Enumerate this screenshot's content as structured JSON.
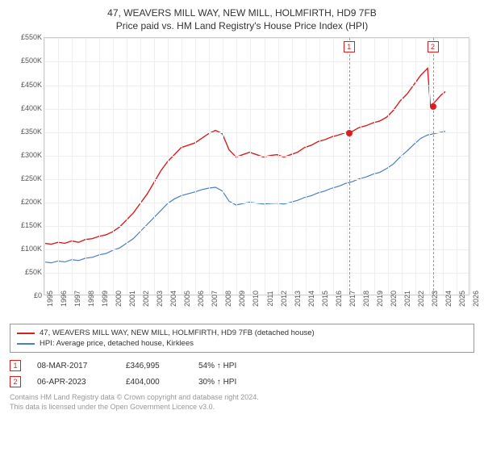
{
  "title_line1": "47, WEAVERS MILL WAY, NEW MILL, HOLMFIRTH, HD9 7FB",
  "title_line2": "Price paid vs. HM Land Registry's House Price Index (HPI)",
  "chart": {
    "type": "line",
    "x_years": [
      1995,
      1996,
      1997,
      1998,
      1999,
      2000,
      2001,
      2002,
      2003,
      2004,
      2005,
      2006,
      2007,
      2008,
      2009,
      2010,
      2011,
      2012,
      2013,
      2014,
      2015,
      2016,
      2017,
      2018,
      2019,
      2020,
      2021,
      2022,
      2023,
      2024,
      2025,
      2026
    ],
    "y_ticks": [
      0,
      50000,
      100000,
      150000,
      200000,
      250000,
      300000,
      350000,
      400000,
      450000,
      500000,
      550000
    ],
    "y_tick_labels": [
      "£0",
      "£50K",
      "£100K",
      "£150K",
      "£200K",
      "£250K",
      "£300K",
      "£350K",
      "£400K",
      "£450K",
      "£500K",
      "£550K"
    ],
    "xlim": [
      1995,
      2026
    ],
    "ylim": [
      0,
      550000
    ],
    "background_color": "#ffffff",
    "grid_color": "#eeeeee",
    "axis_color": "#cccccc",
    "series": [
      {
        "name": "property",
        "label": "47, WEAVERS MILL WAY, NEW MILL, HOLMFIRTH, HD9 7FB (detached house)",
        "color": "#d81e1e",
        "line_width": 1.4,
        "points": [
          [
            1995,
            110000
          ],
          [
            1995.5,
            108000
          ],
          [
            1996,
            112000
          ],
          [
            1996.5,
            110000
          ],
          [
            1997,
            115000
          ],
          [
            1997.5,
            112000
          ],
          [
            1998,
            118000
          ],
          [
            1998.5,
            120000
          ],
          [
            1999,
            125000
          ],
          [
            1999.5,
            128000
          ],
          [
            2000,
            135000
          ],
          [
            2000.5,
            145000
          ],
          [
            2001,
            160000
          ],
          [
            2001.5,
            175000
          ],
          [
            2002,
            195000
          ],
          [
            2002.5,
            215000
          ],
          [
            2003,
            240000
          ],
          [
            2003.5,
            265000
          ],
          [
            2004,
            285000
          ],
          [
            2004.5,
            300000
          ],
          [
            2005,
            315000
          ],
          [
            2005.5,
            320000
          ],
          [
            2006,
            325000
          ],
          [
            2006.5,
            335000
          ],
          [
            2007,
            345000
          ],
          [
            2007.5,
            352000
          ],
          [
            2008,
            345000
          ],
          [
            2008.5,
            310000
          ],
          [
            2009,
            295000
          ],
          [
            2009.5,
            300000
          ],
          [
            2010,
            305000
          ],
          [
            2010.5,
            300000
          ],
          [
            2011,
            295000
          ],
          [
            2011.5,
            298000
          ],
          [
            2012,
            300000
          ],
          [
            2012.5,
            295000
          ],
          [
            2013,
            300000
          ],
          [
            2013.5,
            305000
          ],
          [
            2014,
            315000
          ],
          [
            2014.5,
            320000
          ],
          [
            2015,
            328000
          ],
          [
            2015.5,
            332000
          ],
          [
            2016,
            338000
          ],
          [
            2016.5,
            342000
          ],
          [
            2017,
            347000
          ],
          [
            2017.5,
            350000
          ],
          [
            2018,
            358000
          ],
          [
            2018.5,
            362000
          ],
          [
            2019,
            368000
          ],
          [
            2019.5,
            372000
          ],
          [
            2020,
            380000
          ],
          [
            2020.5,
            395000
          ],
          [
            2021,
            415000
          ],
          [
            2021.5,
            430000
          ],
          [
            2022,
            450000
          ],
          [
            2022.5,
            470000
          ],
          [
            2023,
            485000
          ],
          [
            2023.2,
            404000
          ],
          [
            2023.6,
            415000
          ],
          [
            2024,
            428000
          ],
          [
            2024.3,
            435000
          ]
        ]
      },
      {
        "name": "hpi",
        "label": "HPI: Average price, detached house, Kirklees",
        "color": "#4a7fc4",
        "line_width": 1.2,
        "points": [
          [
            1995,
            70000
          ],
          [
            1995.5,
            68000
          ],
          [
            1996,
            72000
          ],
          [
            1996.5,
            70000
          ],
          [
            1997,
            75000
          ],
          [
            1997.5,
            73000
          ],
          [
            1998,
            78000
          ],
          [
            1998.5,
            80000
          ],
          [
            1999,
            85000
          ],
          [
            1999.5,
            88000
          ],
          [
            2000,
            95000
          ],
          [
            2000.5,
            100000
          ],
          [
            2001,
            110000
          ],
          [
            2001.5,
            120000
          ],
          [
            2002,
            135000
          ],
          [
            2002.5,
            150000
          ],
          [
            2003,
            165000
          ],
          [
            2003.5,
            180000
          ],
          [
            2004,
            195000
          ],
          [
            2004.5,
            205000
          ],
          [
            2005,
            212000
          ],
          [
            2005.5,
            216000
          ],
          [
            2006,
            220000
          ],
          [
            2006.5,
            225000
          ],
          [
            2007,
            228000
          ],
          [
            2007.5,
            230000
          ],
          [
            2008,
            222000
          ],
          [
            2008.5,
            200000
          ],
          [
            2009,
            192000
          ],
          [
            2009.5,
            195000
          ],
          [
            2010,
            198000
          ],
          [
            2010.5,
            196000
          ],
          [
            2011,
            194000
          ],
          [
            2011.5,
            195000
          ],
          [
            2012,
            196000
          ],
          [
            2012.5,
            194000
          ],
          [
            2013,
            198000
          ],
          [
            2013.5,
            202000
          ],
          [
            2014,
            208000
          ],
          [
            2014.5,
            212000
          ],
          [
            2015,
            218000
          ],
          [
            2015.5,
            222000
          ],
          [
            2016,
            228000
          ],
          [
            2016.5,
            232000
          ],
          [
            2017,
            238000
          ],
          [
            2017.5,
            242000
          ],
          [
            2018,
            248000
          ],
          [
            2018.5,
            252000
          ],
          [
            2019,
            258000
          ],
          [
            2019.5,
            262000
          ],
          [
            2020,
            270000
          ],
          [
            2020.5,
            280000
          ],
          [
            2021,
            295000
          ],
          [
            2021.5,
            308000
          ],
          [
            2022,
            322000
          ],
          [
            2022.5,
            335000
          ],
          [
            2023,
            342000
          ],
          [
            2023.5,
            345000
          ],
          [
            2024,
            348000
          ],
          [
            2024.3,
            350000
          ]
        ]
      }
    ],
    "markers": [
      {
        "n": "1",
        "x_year": 2017.18,
        "price": 346995,
        "color": "#d81e1e"
      },
      {
        "n": "2",
        "x_year": 2023.27,
        "price": 404000,
        "color": "#d81e1e"
      }
    ]
  },
  "legend": {
    "rows": [
      {
        "color": "#d81e1e",
        "label": "47, WEAVERS MILL WAY, NEW MILL, HOLMFIRTH, HD9 7FB (detached house)"
      },
      {
        "color": "#4a7fc4",
        "label": "HPI: Average price, detached house, Kirklees"
      }
    ]
  },
  "annotations": [
    {
      "n": "1",
      "color": "#d81e1e",
      "date": "08-MAR-2017",
      "price": "£346,995",
      "pct": "54% ↑ HPI"
    },
    {
      "n": "2",
      "color": "#d81e1e",
      "date": "06-APR-2023",
      "price": "£404,000",
      "pct": "30% ↑ HPI"
    }
  ],
  "footer_line1": "Contains HM Land Registry data © Crown copyright and database right 2024.",
  "footer_line2": "This data is licensed under the Open Government Licence v3.0."
}
